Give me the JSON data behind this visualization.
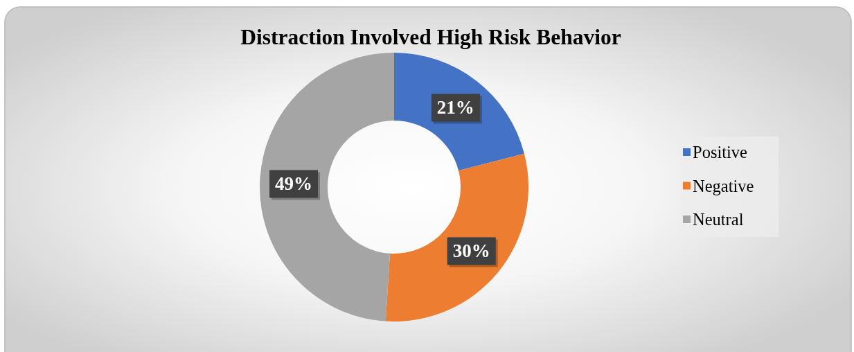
{
  "chart_data": {
    "type": "donut",
    "title": "Distraction Involved High Risk Behavior",
    "categories": [
      "Positive",
      "Negative",
      "Neutral"
    ],
    "values": [
      21,
      30,
      49
    ],
    "colors": [
      "#4472c4",
      "#ed7d31",
      "#a5a5a5"
    ],
    "value_labels": [
      "21%",
      "30%",
      "49%"
    ],
    "legend": "right"
  }
}
